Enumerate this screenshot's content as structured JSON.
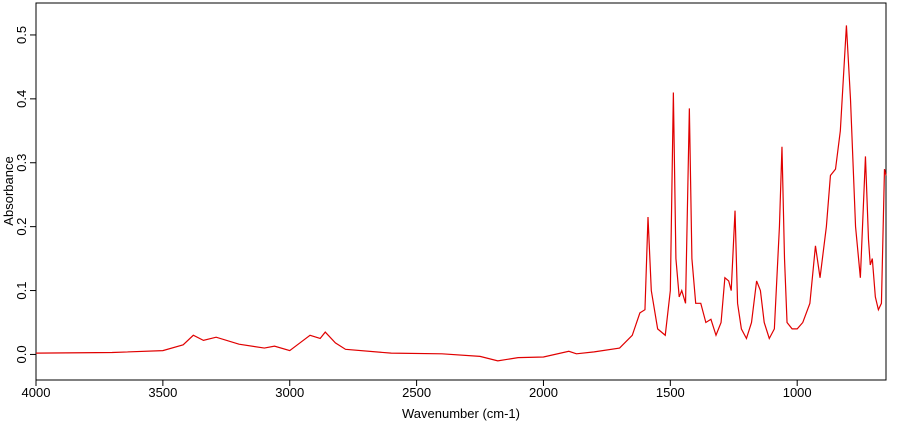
{
  "chart_data": {
    "type": "line",
    "xlabel": "Wavenumber (cm-1)",
    "ylabel": "Absorbance",
    "x": [
      4000,
      3700,
      3500,
      3420,
      3380,
      3340,
      3290,
      3200,
      3100,
      3060,
      3000,
      2960,
      2920,
      2880,
      2860,
      2820,
      2780,
      2600,
      2400,
      2250,
      2180,
      2100,
      2000,
      1900,
      1870,
      1800,
      1700,
      1650,
      1620,
      1600,
      1588,
      1575,
      1550,
      1520,
      1500,
      1488,
      1478,
      1465,
      1455,
      1440,
      1425,
      1415,
      1400,
      1380,
      1360,
      1340,
      1320,
      1300,
      1285,
      1270,
      1260,
      1245,
      1235,
      1220,
      1200,
      1180,
      1160,
      1145,
      1130,
      1110,
      1090,
      1070,
      1060,
      1050,
      1040,
      1020,
      1000,
      978,
      950,
      928,
      910,
      885,
      869,
      849,
      830,
      806,
      790,
      770,
      751,
      731,
      719,
      712,
      704,
      692,
      680,
      668,
      656,
      650
    ],
    "values": [
      0.002,
      0.003,
      0.006,
      0.015,
      0.03,
      0.022,
      0.027,
      0.016,
      0.01,
      0.013,
      0.006,
      0.018,
      0.03,
      0.025,
      0.035,
      0.018,
      0.008,
      0.002,
      0.001,
      -0.003,
      -0.01,
      -0.005,
      -0.004,
      0.005,
      0.001,
      0.004,
      0.01,
      0.03,
      0.065,
      0.07,
      0.215,
      0.1,
      0.04,
      0.03,
      0.1,
      0.41,
      0.15,
      0.09,
      0.1,
      0.08,
      0.385,
      0.15,
      0.08,
      0.08,
      0.05,
      0.055,
      0.03,
      0.05,
      0.12,
      0.115,
      0.1,
      0.225,
      0.08,
      0.04,
      0.025,
      0.05,
      0.115,
      0.1,
      0.05,
      0.025,
      0.04,
      0.2,
      0.325,
      0.15,
      0.05,
      0.04,
      0.04,
      0.05,
      0.08,
      0.17,
      0.12,
      0.2,
      0.28,
      0.29,
      0.35,
      0.515,
      0.4,
      0.2,
      0.12,
      0.31,
      0.18,
      0.14,
      0.15,
      0.09,
      0.07,
      0.08,
      0.29,
      0.28
    ],
    "color": "#e00000",
    "xlim": [
      4000,
      650
    ],
    "xticks": [
      4000,
      3500,
      3000,
      2500,
      2000,
      1500,
      1000
    ],
    "ylim": [
      -0.04,
      0.55
    ],
    "yticks": [
      {
        "value": 0,
        "label": "0.0"
      },
      0.1,
      0.2,
      0.3,
      0.4,
      0.5
    ],
    "grid": false
  }
}
